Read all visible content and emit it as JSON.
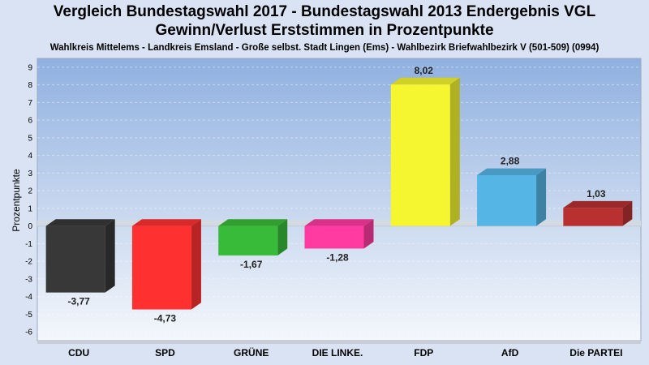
{
  "header": {
    "title_line1": "Vergleich Bundestagswahl 2017 - Bundestagswahl 2013 Endergebnis VGL",
    "title_line2": "Gewinn/Verlust Erststimmen in Prozentpunkte",
    "subtitle": "Wahlkreis Mittelems - Landkreis Emsland - Große selbst. Stadt Lingen (Ems) - Wahlbezirk Briefwahlbezirk V (501-509) (0994)"
  },
  "chart_data": {
    "type": "bar",
    "title": "Vergleich Bundestagswahl 2017 - Bundestagswahl 2013 Endergebnis VGL",
    "subtitle": "Gewinn/Verlust Erststimmen in Prozentpunkte",
    "xlabel": "",
    "ylabel": "Prozentpunkte",
    "ylim": [
      -6.5,
      9.5
    ],
    "yticks": [
      9,
      8,
      7,
      6,
      5,
      4,
      3,
      2,
      1,
      0,
      -1,
      -2,
      -3,
      -4,
      -5,
      -6
    ],
    "grid": true,
    "categories": [
      "CDU",
      "SPD",
      "GRÜNE",
      "DIE LINKE.",
      "FDP",
      "AfD",
      "Die PARTEI"
    ],
    "values": [
      -3.77,
      -4.73,
      -1.67,
      -1.28,
      8.02,
      2.88,
      1.03
    ],
    "value_labels": [
      "-3,77",
      "-4,73",
      "-1,67",
      "-1,28",
      "8,02",
      "2,88",
      "1,03"
    ],
    "colors": [
      "#383838",
      "#ff3030",
      "#38bb38",
      "#ff3aa0",
      "#f5f530",
      "#55b5e5",
      "#b83030"
    ]
  }
}
